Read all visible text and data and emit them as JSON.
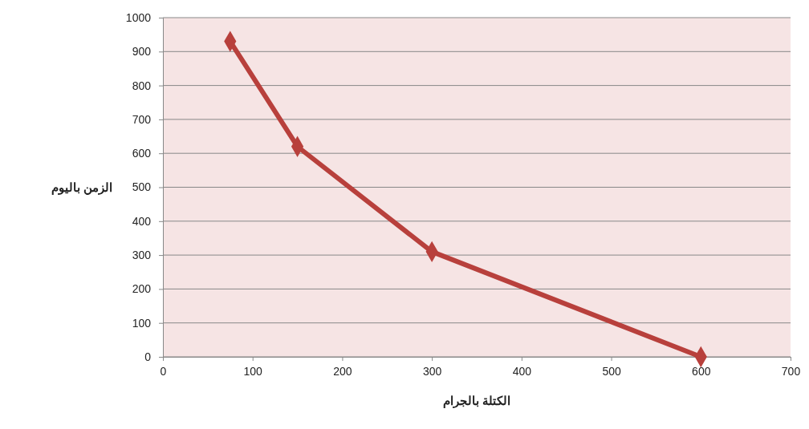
{
  "chart_data": {
    "type": "line",
    "xlabel": "الكتلة بالجرام",
    "ylabel": "الزمن باليوم",
    "x": [
      75,
      150,
      300,
      600
    ],
    "series": [
      {
        "color": "#b8403c",
        "values": [
          930,
          620,
          310,
          0
        ]
      }
    ],
    "xlim": [
      0,
      700
    ],
    "xticks": [
      0,
      100,
      200,
      300,
      400,
      500,
      600,
      700
    ],
    "ylim": [
      0,
      1000
    ],
    "yticks": [
      0,
      100,
      200,
      300,
      400,
      500,
      600,
      700,
      800,
      900,
      1000
    ],
    "grid": "y",
    "marker": "diamond",
    "line_style": "solid"
  }
}
